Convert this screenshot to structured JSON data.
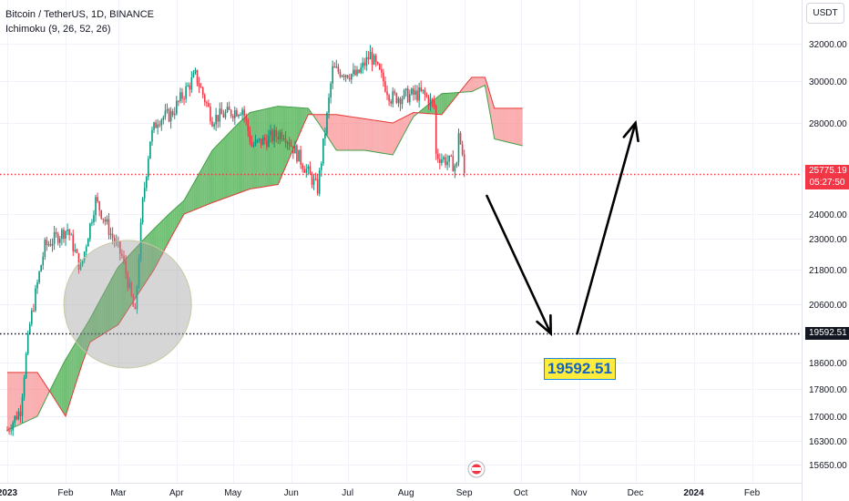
{
  "header": {
    "title": "Bitcoin / TetherUS, 1D, BINANCE",
    "indicator": "Ichimoku (9, 26, 52, 26)",
    "currency": "USDT"
  },
  "annotation": {
    "label": "19592.51"
  },
  "current_price": {
    "value": "25775.19",
    "countdown": "05:27:50",
    "color": "#f23645"
  },
  "marked_price": {
    "value": "19592.51",
    "color": "#131722"
  },
  "colors": {
    "bull": "#089981",
    "bear": "#f23645",
    "cloud_green": "#4caf50",
    "cloud_red": "#f77c80",
    "annotation_bg": "#ffeb3b",
    "annotation_text": "#1565c0"
  },
  "chart_data": {
    "type": "candlestick",
    "symbol": "Bitcoin / TetherUS",
    "interval": "1D",
    "exchange": "BINANCE",
    "y_ticks": [
      32000,
      30000,
      28000,
      24000,
      23000,
      21800,
      20600,
      18600,
      17800,
      17000,
      16300,
      15650
    ],
    "x_ticks": [
      "2023",
      "Feb",
      "Mar",
      "Apr",
      "May",
      "Jun",
      "Jul",
      "Aug",
      "Sep",
      "Oct",
      "Nov",
      "Dec",
      "2024",
      "Feb"
    ],
    "close_anchors": [
      {
        "date": "2023-01-01",
        "close": 16600
      },
      {
        "date": "2023-01-08",
        "close": 17200
      },
      {
        "date": "2023-01-13",
        "close": 19900
      },
      {
        "date": "2023-01-21",
        "close": 22700
      },
      {
        "date": "2023-02-02",
        "close": 23400
      },
      {
        "date": "2023-02-09",
        "close": 21800
      },
      {
        "date": "2023-02-17",
        "close": 24600
      },
      {
        "date": "2023-02-25",
        "close": 23200
      },
      {
        "date": "2023-03-03",
        "close": 22300
      },
      {
        "date": "2023-03-10",
        "close": 20200
      },
      {
        "date": "2023-03-14",
        "close": 24500
      },
      {
        "date": "2023-03-18",
        "close": 27300
      },
      {
        "date": "2023-03-22",
        "close": 28200
      },
      {
        "date": "2023-03-29",
        "close": 28400
      },
      {
        "date": "2023-04-11",
        "close": 30300
      },
      {
        "date": "2023-04-20",
        "close": 28200
      },
      {
        "date": "2023-04-26",
        "close": 28400
      },
      {
        "date": "2023-05-06",
        "close": 28700
      },
      {
        "date": "2023-05-11",
        "close": 27000
      },
      {
        "date": "2023-05-28",
        "close": 27600
      },
      {
        "date": "2023-06-10",
        "close": 25800
      },
      {
        "date": "2023-06-15",
        "close": 25100
      },
      {
        "date": "2023-06-20",
        "close": 28300
      },
      {
        "date": "2023-06-23",
        "close": 30600
      },
      {
        "date": "2023-07-06",
        "close": 30300
      },
      {
        "date": "2023-07-13",
        "close": 31400
      },
      {
        "date": "2023-07-24",
        "close": 29200
      },
      {
        "date": "2023-08-10",
        "close": 29400
      },
      {
        "date": "2023-08-16",
        "close": 28800
      },
      {
        "date": "2023-08-17",
        "close": 26600
      },
      {
        "date": "2023-08-28",
        "close": 26100
      },
      {
        "date": "2023-08-29",
        "close": 27700
      },
      {
        "date": "2023-09-01",
        "close": 25800
      }
    ],
    "cloud": {
      "span_a": [
        {
          "date": "2023-01-01",
          "value": 16600
        },
        {
          "date": "2023-01-17",
          "value": 17000
        },
        {
          "date": "2023-02-01",
          "value": 18700
        },
        {
          "date": "2023-02-14",
          "value": 20100
        },
        {
          "date": "2023-03-01",
          "value": 21900
        },
        {
          "date": "2023-03-20",
          "value": 23400
        },
        {
          "date": "2023-04-05",
          "value": 24600
        },
        {
          "date": "2023-04-20",
          "value": 26800
        },
        {
          "date": "2023-05-10",
          "value": 28500
        },
        {
          "date": "2023-05-25",
          "value": 28800
        },
        {
          "date": "2023-06-10",
          "value": 28700
        },
        {
          "date": "2023-06-25",
          "value": 26800
        },
        {
          "date": "2023-07-10",
          "value": 26800
        },
        {
          "date": "2023-07-25",
          "value": 26600
        },
        {
          "date": "2023-08-05",
          "value": 28300
        },
        {
          "date": "2023-08-20",
          "value": 29400
        },
        {
          "date": "2023-09-05",
          "value": 29500
        },
        {
          "date": "2023-09-12",
          "value": 29800
        },
        {
          "date": "2023-09-17",
          "value": 27300
        },
        {
          "date": "2023-10-02",
          "value": 27000
        }
      ],
      "span_b": [
        {
          "date": "2023-01-01",
          "value": 18300
        },
        {
          "date": "2023-01-17",
          "value": 18300
        },
        {
          "date": "2023-02-01",
          "value": 17000
        },
        {
          "date": "2023-02-14",
          "value": 19300
        },
        {
          "date": "2023-03-01",
          "value": 19900
        },
        {
          "date": "2023-03-20",
          "value": 21800
        },
        {
          "date": "2023-04-05",
          "value": 24000
        },
        {
          "date": "2023-04-20",
          "value": 24500
        },
        {
          "date": "2023-05-10",
          "value": 25100
        },
        {
          "date": "2023-05-25",
          "value": 25300
        },
        {
          "date": "2023-06-10",
          "value": 28400
        },
        {
          "date": "2023-06-25",
          "value": 28400
        },
        {
          "date": "2023-07-10",
          "value": 28200
        },
        {
          "date": "2023-07-25",
          "value": 28000
        },
        {
          "date": "2023-08-05",
          "value": 28500
        },
        {
          "date": "2023-08-20",
          "value": 28400
        },
        {
          "date": "2023-09-05",
          "value": 30200
        },
        {
          "date": "2023-09-12",
          "value": 30200
        },
        {
          "date": "2023-09-17",
          "value": 28700
        },
        {
          "date": "2023-10-02",
          "value": 28700
        }
      ]
    },
    "horizontal_lines": [
      {
        "price": 25775.19,
        "style": "dotted",
        "color": "#f23645"
      },
      {
        "price": 19592.51,
        "style": "dotted",
        "color": "#131722"
      }
    ],
    "drawings": {
      "highlight_circle": {
        "center_date": "2023-03-06",
        "center_price": 20600
      },
      "projection_path": [
        {
          "date": "2023-09-13",
          "price": 24800
        },
        {
          "date": "2023-10-17",
          "price": 19592.51
        },
        {
          "date": "2023-10-31",
          "price": 19592.51
        },
        {
          "date": "2023-12-01",
          "price": 28000
        }
      ]
    }
  }
}
